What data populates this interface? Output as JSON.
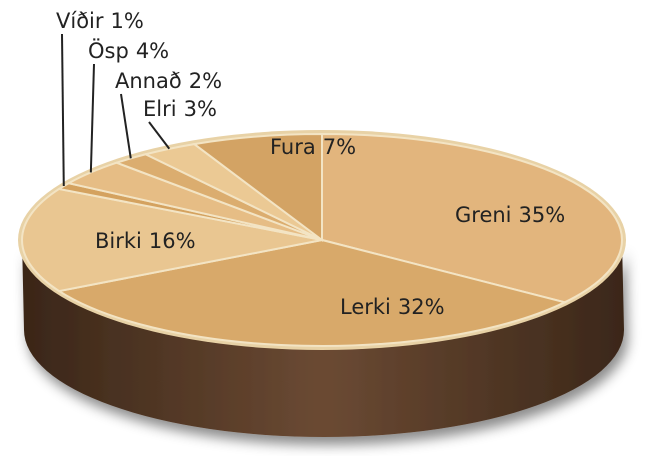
{
  "chart_data": {
    "type": "pie",
    "categories": [
      "Greni",
      "Lerki",
      "Birki",
      "Víðir",
      "Ösp",
      "Annað",
      "Elri",
      "Fura"
    ],
    "values": [
      35,
      32,
      16,
      1,
      4,
      2,
      3,
      7
    ],
    "value_labels": [
      "35%",
      "32%",
      "16%",
      "1%",
      "4%",
      "2%",
      "3%",
      "7%"
    ],
    "colors": [
      "#e2b57d",
      "#d8a96a",
      "#e9c691",
      "#d4a25f",
      "#e6bd85",
      "#dbad6f",
      "#ebc994",
      "#d3a364"
    ]
  }
}
